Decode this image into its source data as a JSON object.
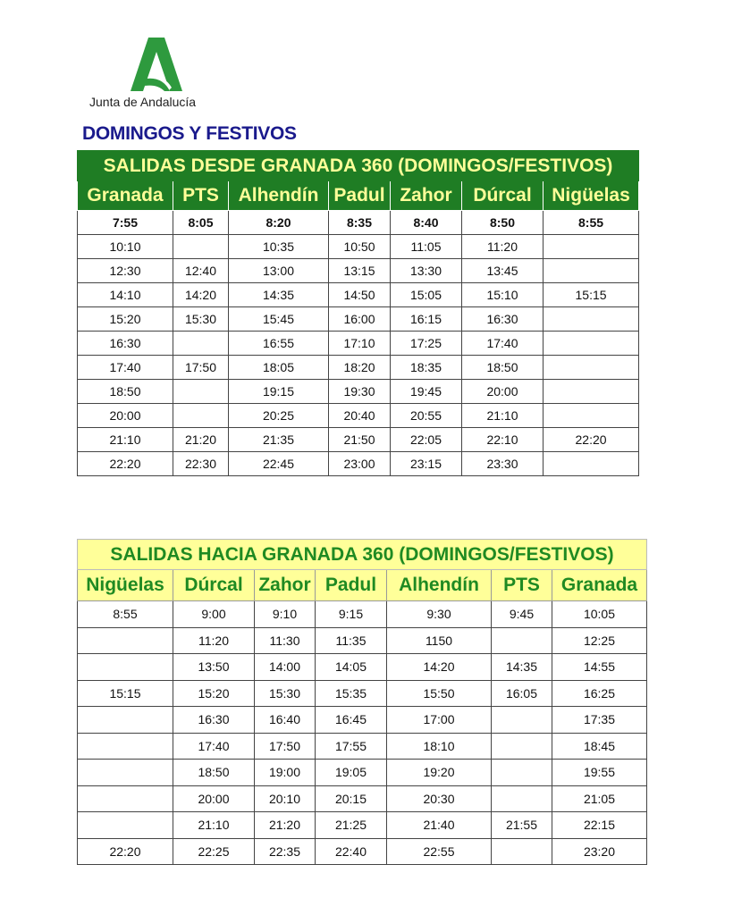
{
  "logo": {
    "text": "Junta de Andalucía",
    "color": "#2e9a3e"
  },
  "heading": "DOMINGOS Y FESTIVOS",
  "colors": {
    "green": "#1f7d24",
    "yellow": "#ffff99",
    "heading": "#1a1a8c"
  },
  "table_out": {
    "title": "SALIDAS DESDE GRANADA 360 (DOMINGOS/FESTIVOS)",
    "headers": [
      "Granada",
      "PTS",
      "Alhendín",
      "Padul",
      "Zahor",
      "Dúrcal",
      "Nigüelas"
    ],
    "rows": [
      [
        "7:55",
        "8:05",
        "8:20",
        "8:35",
        "8:40",
        "8:50",
        "8:55"
      ],
      [
        "10:10",
        "",
        "10:35",
        "10:50",
        "11:05",
        "11:20",
        ""
      ],
      [
        "12:30",
        "12:40",
        "13:00",
        "13:15",
        "13:30",
        "13:45",
        ""
      ],
      [
        "14:10",
        "14:20",
        "14:35",
        "14:50",
        "15:05",
        "15:10",
        "15:15"
      ],
      [
        "15:20",
        "15:30",
        "15:45",
        "16:00",
        "16:15",
        "16:30",
        ""
      ],
      [
        "16:30",
        "",
        "16:55",
        "17:10",
        "17:25",
        "17:40",
        ""
      ],
      [
        "17:40",
        "17:50",
        "18:05",
        "18:20",
        "18:35",
        "18:50",
        ""
      ],
      [
        "18:50",
        "",
        "19:15",
        "19:30",
        "19:45",
        "20:00",
        ""
      ],
      [
        "20:00",
        "",
        "20:25",
        "20:40",
        "20:55",
        "21:10",
        ""
      ],
      [
        "21:10",
        "21:20",
        "21:35",
        "21:50",
        "22:05",
        "22:10",
        "22:20"
      ],
      [
        "22:20",
        "22:30",
        "22:45",
        "23:00",
        "23:15",
        "23:30",
        ""
      ]
    ]
  },
  "table_in": {
    "title": "SALIDAS HACIA GRANADA 360 (DOMINGOS/FESTIVOS)",
    "headers": [
      "Nigüelas",
      "Dúrcal",
      "Zahor",
      "Padul",
      "Alhendín",
      "PTS",
      "Granada"
    ],
    "rows": [
      [
        "8:55",
        "9:00",
        "9:10",
        "9:15",
        "9:30",
        "9:45",
        "10:05"
      ],
      [
        "",
        "11:20",
        "11:30",
        "11:35",
        "1150",
        "",
        "12:25"
      ],
      [
        "",
        "13:50",
        "14:00",
        "14:05",
        "14:20",
        "14:35",
        "14:55"
      ],
      [
        "15:15",
        "15:20",
        "15:30",
        "15:35",
        "15:50",
        "16:05",
        "16:25"
      ],
      [
        "",
        "16:30",
        "16:40",
        "16:45",
        "17:00",
        "",
        "17:35"
      ],
      [
        "",
        "17:40",
        "17:50",
        "17:55",
        "18:10",
        "",
        "18:45"
      ],
      [
        "",
        "18:50",
        "19:00",
        "19:05",
        "19:20",
        "",
        "19:55"
      ],
      [
        "",
        "20:00",
        "20:10",
        "20:15",
        "20:30",
        "",
        "21:05"
      ],
      [
        "",
        "21:10",
        "21:20",
        "21:25",
        "21:40",
        "21:55",
        "22:15"
      ],
      [
        "22:20",
        "22:25",
        "22:35",
        "22:40",
        "22:55",
        "",
        "23:20"
      ]
    ]
  }
}
